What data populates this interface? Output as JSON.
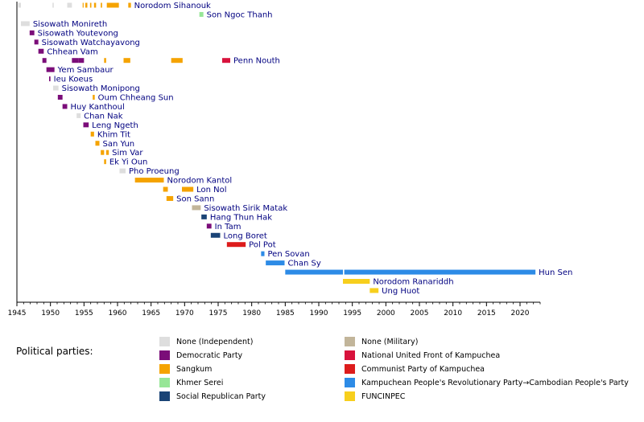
{
  "chart_data": {
    "type": "timeline",
    "x_axis": {
      "min": 1945,
      "max": 2023,
      "ticks": [
        1945,
        1950,
        1955,
        1960,
        1965,
        1970,
        1975,
        1980,
        1985,
        1990,
        1995,
        2000,
        2005,
        2010,
        2015,
        2020
      ]
    },
    "legend_title": "Political parties:",
    "parties": [
      {
        "key": "ind",
        "label": "None (Independent)",
        "color": "#dedede"
      },
      {
        "key": "dem",
        "label": "Democratic Party",
        "color": "#7b0d79"
      },
      {
        "key": "sang",
        "label": "Sangkum",
        "color": "#f5a300"
      },
      {
        "key": "kser",
        "label": "Khmer Serei",
        "color": "#97e697"
      },
      {
        "key": "srp",
        "label": "Social Republican Party",
        "color": "#1a4376"
      },
      {
        "key": "mil",
        "label": "None (Military)",
        "color": "#c2b59a"
      },
      {
        "key": "nufk",
        "label": "National United Front of Kampuchea",
        "color": "#d8123c"
      },
      {
        "key": "cpk",
        "label": "Communist Party of Kampuchea",
        "color": "#dd1c1c"
      },
      {
        "key": "cpp",
        "label": "Kampuchean People's Revolutionary Party→Cambodian People's Party",
        "color": "#2d8be6"
      },
      {
        "key": "fun",
        "label": "FUNCINPEC",
        "color": "#f7cf1d"
      }
    ],
    "people": [
      {
        "name": "Norodom Sihanouk",
        "terms": [
          [
            1945.2,
            1945.6,
            "ind"
          ],
          [
            1950.3,
            1950.5,
            "ind"
          ],
          [
            1952.5,
            1953.2,
            "ind"
          ],
          [
            1954.8,
            1954.9,
            "sang"
          ],
          [
            1955.2,
            1955.5,
            "sang"
          ],
          [
            1955.9,
            1956.1,
            "sang"
          ],
          [
            1956.5,
            1956.8,
            "sang"
          ],
          [
            1957.5,
            1957.7,
            "sang"
          ],
          [
            1958.4,
            1960.2,
            "sang"
          ],
          [
            1961.6,
            1962.0,
            "sang"
          ]
        ]
      },
      {
        "name": "Son Ngoc Thanh",
        "terms": [
          [
            1972.2,
            1972.8,
            "kser"
          ]
        ]
      },
      {
        "name": "Sisowath Monireth",
        "terms": [
          [
            1945.6,
            1946.9,
            "ind"
          ]
        ]
      },
      {
        "name": "Sisowath Youtevong",
        "terms": [
          [
            1946.9,
            1947.6,
            "dem"
          ]
        ]
      },
      {
        "name": "Sisowath Watchayavong",
        "terms": [
          [
            1947.6,
            1948.2,
            "dem"
          ]
        ]
      },
      {
        "name": "Chhean Vam",
        "terms": [
          [
            1948.2,
            1949.0,
            "dem"
          ]
        ]
      },
      {
        "name": "Penn Nouth",
        "terms": [
          [
            1948.8,
            1949.4,
            "dem"
          ],
          [
            1953.2,
            1954.2,
            "dem"
          ],
          [
            1954.2,
            1955.0,
            "dem"
          ],
          [
            1958.0,
            1958.3,
            "sang"
          ],
          [
            1960.9,
            1961.9,
            "sang"
          ],
          [
            1968.0,
            1969.7,
            "sang"
          ],
          [
            1975.6,
            1976.8,
            "nufk"
          ]
        ]
      },
      {
        "name": "Yem Sambaur",
        "terms": [
          [
            1949.4,
            1950.6,
            "dem"
          ]
        ]
      },
      {
        "name": "Ieu Koeus",
        "terms": [
          [
            1949.8,
            1950.0,
            "dem"
          ]
        ]
      },
      {
        "name": "Sisowath Monipong",
        "terms": [
          [
            1950.4,
            1951.2,
            "ind"
          ]
        ]
      },
      {
        "name": "Oum Chheang Sun",
        "terms": [
          [
            1951.1,
            1951.8,
            "dem"
          ],
          [
            1956.3,
            1956.6,
            "sang"
          ]
        ]
      },
      {
        "name": "Huy Kanthoul",
        "terms": [
          [
            1951.8,
            1952.5,
            "dem"
          ]
        ]
      },
      {
        "name": "Chan Nak",
        "terms": [
          [
            1953.9,
            1954.5,
            "ind"
          ]
        ]
      },
      {
        "name": "Leng Ngeth",
        "terms": [
          [
            1954.9,
            1955.7,
            "dem"
          ]
        ]
      },
      {
        "name": "Khim Tit",
        "terms": [
          [
            1956.0,
            1956.5,
            "sang"
          ]
        ]
      },
      {
        "name": "San Yun",
        "terms": [
          [
            1956.7,
            1957.3,
            "sang"
          ]
        ]
      },
      {
        "name": "Sim Var",
        "terms": [
          [
            1957.5,
            1958.0,
            "sang"
          ],
          [
            1958.3,
            1958.7,
            "sang"
          ]
        ]
      },
      {
        "name": "Ek Yi Oun",
        "terms": [
          [
            1958.0,
            1958.3,
            "sang"
          ]
        ]
      },
      {
        "name": "Pho Proeung",
        "terms": [
          [
            1960.3,
            1961.2,
            "ind"
          ]
        ]
      },
      {
        "name": "Norodom Kantol",
        "terms": [
          [
            1962.6,
            1966.9,
            "sang"
          ]
        ]
      },
      {
        "name": "Lon Nol",
        "terms": [
          [
            1966.8,
            1967.5,
            "sang"
          ],
          [
            1969.6,
            1971.3,
            "sang"
          ]
        ]
      },
      {
        "name": "Son Sann",
        "terms": [
          [
            1967.3,
            1968.3,
            "sang"
          ]
        ]
      },
      {
        "name": "Sisowath Sirik Matak",
        "terms": [
          [
            1971.1,
            1972.4,
            "mil"
          ]
        ]
      },
      {
        "name": "Hang Thun Hak",
        "terms": [
          [
            1972.5,
            1973.3,
            "srp"
          ]
        ]
      },
      {
        "name": "In Tam",
        "terms": [
          [
            1973.3,
            1974.0,
            "dem"
          ]
        ]
      },
      {
        "name": "Long Boret",
        "terms": [
          [
            1973.9,
            1975.3,
            "srp"
          ]
        ]
      },
      {
        "name": "Pol Pot",
        "terms": [
          [
            1976.3,
            1979.1,
            "cpk"
          ]
        ]
      },
      {
        "name": "Pen Sovan",
        "terms": [
          [
            1981.4,
            1981.9,
            "cpp"
          ]
        ]
      },
      {
        "name": "Chan Sy",
        "terms": [
          [
            1982.1,
            1984.9,
            "cpp"
          ]
        ]
      },
      {
        "name": "Hun Sen",
        "terms": [
          [
            1985.0,
            1993.6,
            "cpp"
          ],
          [
            1993.8,
            2022.3,
            "cpp"
          ]
        ]
      },
      {
        "name": "Norodom Ranariddh",
        "terms": [
          [
            1993.6,
            1997.6,
            "fun"
          ]
        ]
      },
      {
        "name": "Ung Huot",
        "terms": [
          [
            1997.6,
            1998.9,
            "fun"
          ]
        ]
      }
    ]
  }
}
